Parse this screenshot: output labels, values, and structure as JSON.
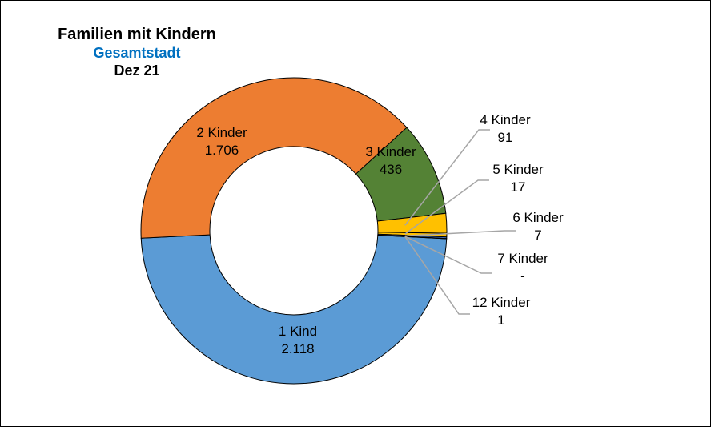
{
  "chart_data": {
    "type": "pie",
    "donut": true,
    "title": "Familien mit Kindern",
    "subtitle": "Gesamtstadt",
    "date_label": "Dez 21",
    "categories": [
      "1 Kind",
      "2 Kinder",
      "3 Kinder",
      "4 Kinder",
      "5 Kinder",
      "6 Kinder",
      "7 Kinder",
      "12 Kinder"
    ],
    "values": [
      2118,
      1706,
      436,
      91,
      17,
      7,
      0,
      1
    ],
    "value_labels": [
      "2.118",
      "1.706",
      "436",
      "91",
      "17",
      "7",
      "-",
      "1"
    ],
    "colors": [
      "#5B9BD5",
      "#ED7D31",
      "#548235",
      "#FFC000",
      "#FFC000",
      "#4472C4",
      "#264478",
      "#1F3864"
    ],
    "legend": "none",
    "data_label_position": "inside for large slices, outside with leader lines for small slices"
  }
}
